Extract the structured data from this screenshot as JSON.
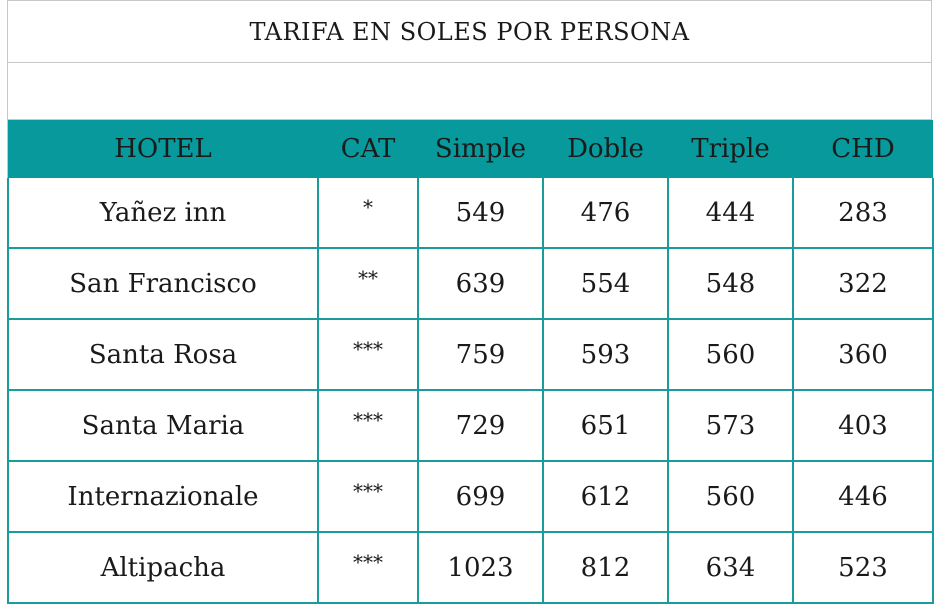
{
  "title": "TARIFA EN SOLES POR PERSONA",
  "headers": [
    "HOTEL",
    "CAT",
    "Simple",
    "Doble",
    "Triple",
    "CHD"
  ],
  "rows": [
    {
      "hotel": "Yañez inn",
      "cat": "*",
      "simple": "549",
      "doble": "476",
      "triple": "444",
      "chd": "283"
    },
    {
      "hotel": "San Francisco",
      "cat": "**",
      "simple": "639",
      "doble": "554",
      "triple": "548",
      "chd": "322"
    },
    {
      "hotel": "Santa Rosa",
      "cat": "***",
      "simple": "759",
      "doble": "593",
      "triple": "560",
      "chd": "360"
    },
    {
      "hotel": "Santa Maria",
      "cat": "***",
      "simple": "729",
      "doble": "651",
      "triple": "573",
      "chd": "403"
    },
    {
      "hotel": "Internazionale",
      "cat": "***",
      "simple": "699",
      "doble": "612",
      "triple": "560",
      "chd": "446"
    },
    {
      "hotel": "Altipacha",
      "cat": "***",
      "simple": "1023",
      "doble": "812",
      "triple": "634",
      "chd": "523"
    }
  ],
  "colors": {
    "header_bg": "#07999b",
    "border": "#1a9c9d"
  }
}
